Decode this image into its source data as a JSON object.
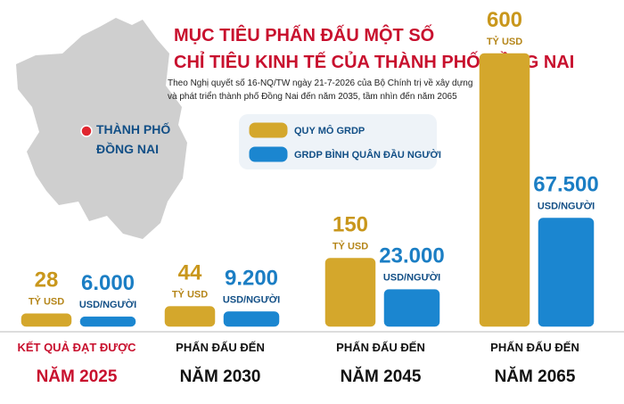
{
  "chart_data": {
    "type": "bar",
    "title": [
      "MỤC TIÊU PHẤN ĐẤU MỘT SỐ",
      "CHỈ TIÊU KINH TẾ CỦA THÀNH PHỐ ĐỒNG NAI"
    ],
    "subtitle": [
      "Theo Nghị quyết số 16-NQ/TW ngày 21-7-2026 của Bộ Chính trị về xây dựng",
      "và phát triển thành phố Đồng Nai đến năm 2035, tầm nhìn đến năm 2065"
    ],
    "map_label": [
      "THÀNH PHỐ",
      "ĐỒNG NAI"
    ],
    "categories": [
      "NĂM 2025",
      "NĂM 2030",
      "NĂM 2045",
      "NĂM 2065"
    ],
    "category_captions": [
      "KẾT QUẢ ĐẠT ĐƯỢC",
      "PHẤN ĐẤU ĐẾN",
      "PHẤN ĐẤU ĐẾN",
      "PHẤN ĐẤU ĐẾN"
    ],
    "category_colors": [
      "#c8102e",
      "#111111",
      "#111111",
      "#111111"
    ],
    "series": [
      {
        "name": "QUY MÔ GRDP",
        "unit": "TỶ USD",
        "color": "#d4a72c",
        "label_color": "#c9971c",
        "unit_color": "#b5861a",
        "values": [
          28,
          44,
          150,
          600
        ]
      },
      {
        "name": "GRDP BÌNH QUÂN ĐẦU NGƯỜI",
        "unit": "USD/NGƯỜI",
        "color": "#1b86d0",
        "label_color": "#1b7ec4",
        "unit_color": "#124f86",
        "axis": "y2",
        "values": [
          6000,
          9200,
          23000,
          67500
        ],
        "value_labels": [
          "6.000",
          "9.200",
          "23.000",
          "67.500"
        ]
      }
    ],
    "ylim": [
      0,
      600
    ],
    "y2lim": [
      0,
      170000
    ]
  }
}
